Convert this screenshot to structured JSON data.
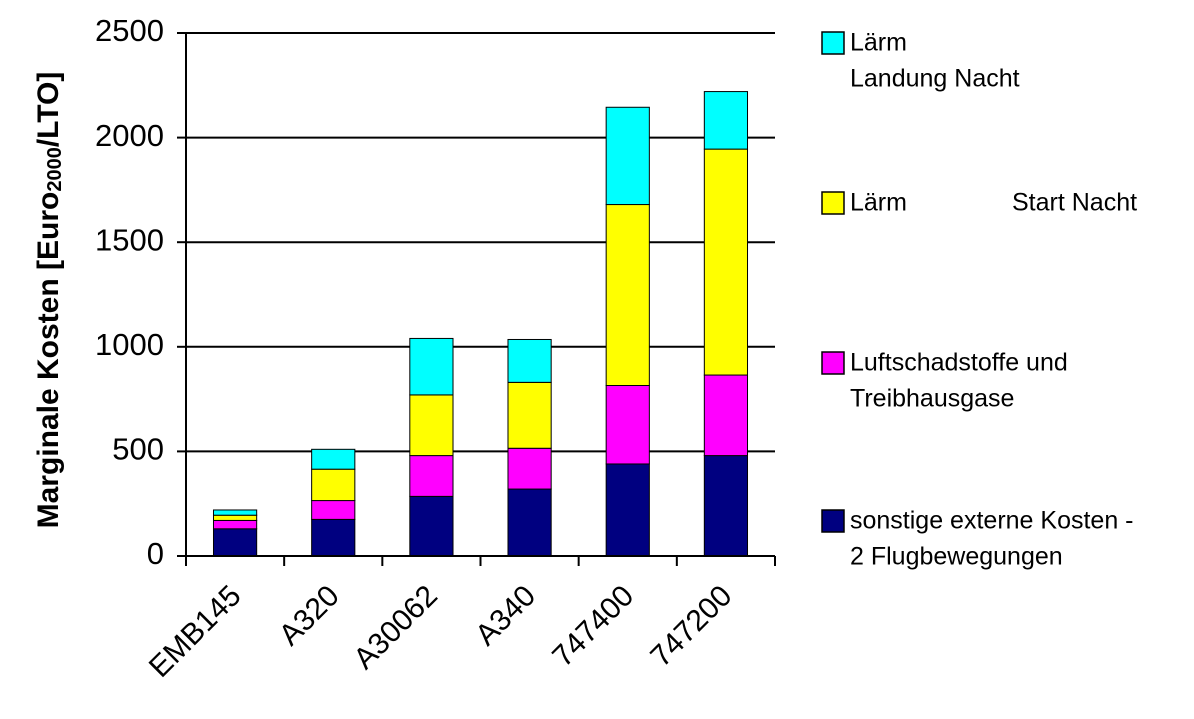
{
  "chart_data": {
    "type": "bar",
    "stacked": true,
    "categories": [
      "EMB145",
      "A320",
      "A30062",
      "A340",
      "747400",
      "747200"
    ],
    "series": [
      {
        "name": "sonstige externe Kosten - 2 Flugbewegungen",
        "color": "#000080",
        "values": [
          130,
          175,
          285,
          320,
          440,
          480
        ]
      },
      {
        "name": "Luftschadstoffe und Treibhausgase",
        "color": "#ff00ff",
        "values": [
          40,
          90,
          195,
          195,
          375,
          385
        ]
      },
      {
        "name": "Lärm Start Nacht",
        "color": "#ffff00",
        "values": [
          25,
          150,
          290,
          315,
          865,
          1080
        ]
      },
      {
        "name": "Lärm Landung Nacht",
        "color": "#00ffff",
        "values": [
          25,
          95,
          270,
          205,
          465,
          275
        ]
      }
    ],
    "ylabel": {
      "main": "Marginale Kosten  [Euro",
      "sub": "2000",
      "end": "/LTO]"
    },
    "ylim": [
      0,
      2500
    ],
    "yticks": [
      "0",
      "500",
      "1000",
      "1500",
      "2000",
      "2500"
    ],
    "grid": true,
    "legend_position": "right",
    "legend": [
      {
        "color": "#00ffff",
        "lines": [
          "Lärm",
          "Landung Nacht"
        ]
      },
      {
        "color": "#ffff00",
        "lines": [
          "Lärm",
          "Start Nacht"
        ]
      },
      {
        "color": "#ff00ff",
        "lines": [
          "Luftschadstoffe und",
          "Treibhausgase"
        ]
      },
      {
        "color": "#000080",
        "lines": [
          "sonstige externe Kosten -",
          "2 Flugbewegungen"
        ]
      }
    ]
  }
}
